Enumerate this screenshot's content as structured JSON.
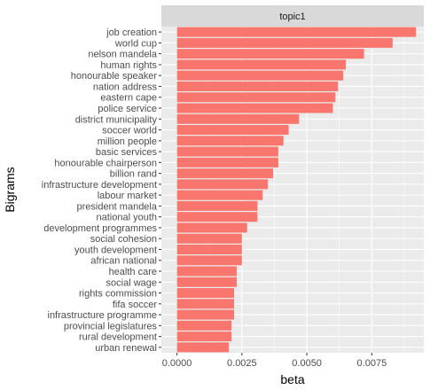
{
  "chart_data": {
    "type": "bar",
    "orientation": "horizontal",
    "facet_label": "topic1",
    "categories": [
      "job creation",
      "world cup",
      "nelson mandela",
      "human rights",
      "honourable speaker",
      "nation address",
      "eastern cape",
      "police service",
      "district municipality",
      "soccer world",
      "million people",
      "basic services",
      "honourable chairperson",
      "billion rand",
      "infrastructure development",
      "labour market",
      "president mandela",
      "national youth",
      "development programmes",
      "social cohesion",
      "youth development",
      "african national",
      "health care",
      "social wage",
      "rights commission",
      "fifa soccer",
      "infrastructure programme",
      "provincial legislatures",
      "rural development",
      "urban renewal"
    ],
    "values": [
      0.0092,
      0.0083,
      0.0072,
      0.0065,
      0.0064,
      0.0062,
      0.0061,
      0.006,
      0.0047,
      0.0043,
      0.0041,
      0.0039,
      0.0039,
      0.0037,
      0.0035,
      0.0033,
      0.0031,
      0.0031,
      0.0027,
      0.0025,
      0.0025,
      0.0025,
      0.0023,
      0.0023,
      0.0022,
      0.0022,
      0.0022,
      0.0021,
      0.0021,
      0.002
    ],
    "xlabel": "beta",
    "ylabel": "Bigrams",
    "xlim": [
      -0.0006,
      0.0095
    ],
    "x_ticks": [
      0,
      0.0025,
      0.005,
      0.0075
    ],
    "x_tick_labels": [
      "0.0000",
      "0.0025",
      "0.0050",
      "0.0075"
    ],
    "grid": true,
    "colors": {
      "bar": "#F8766D",
      "panel": "#EBEBEB",
      "grid_major": "#FFFFFF",
      "strip": "#D9D9D9",
      "tick_text": "#4D4D4D"
    }
  }
}
